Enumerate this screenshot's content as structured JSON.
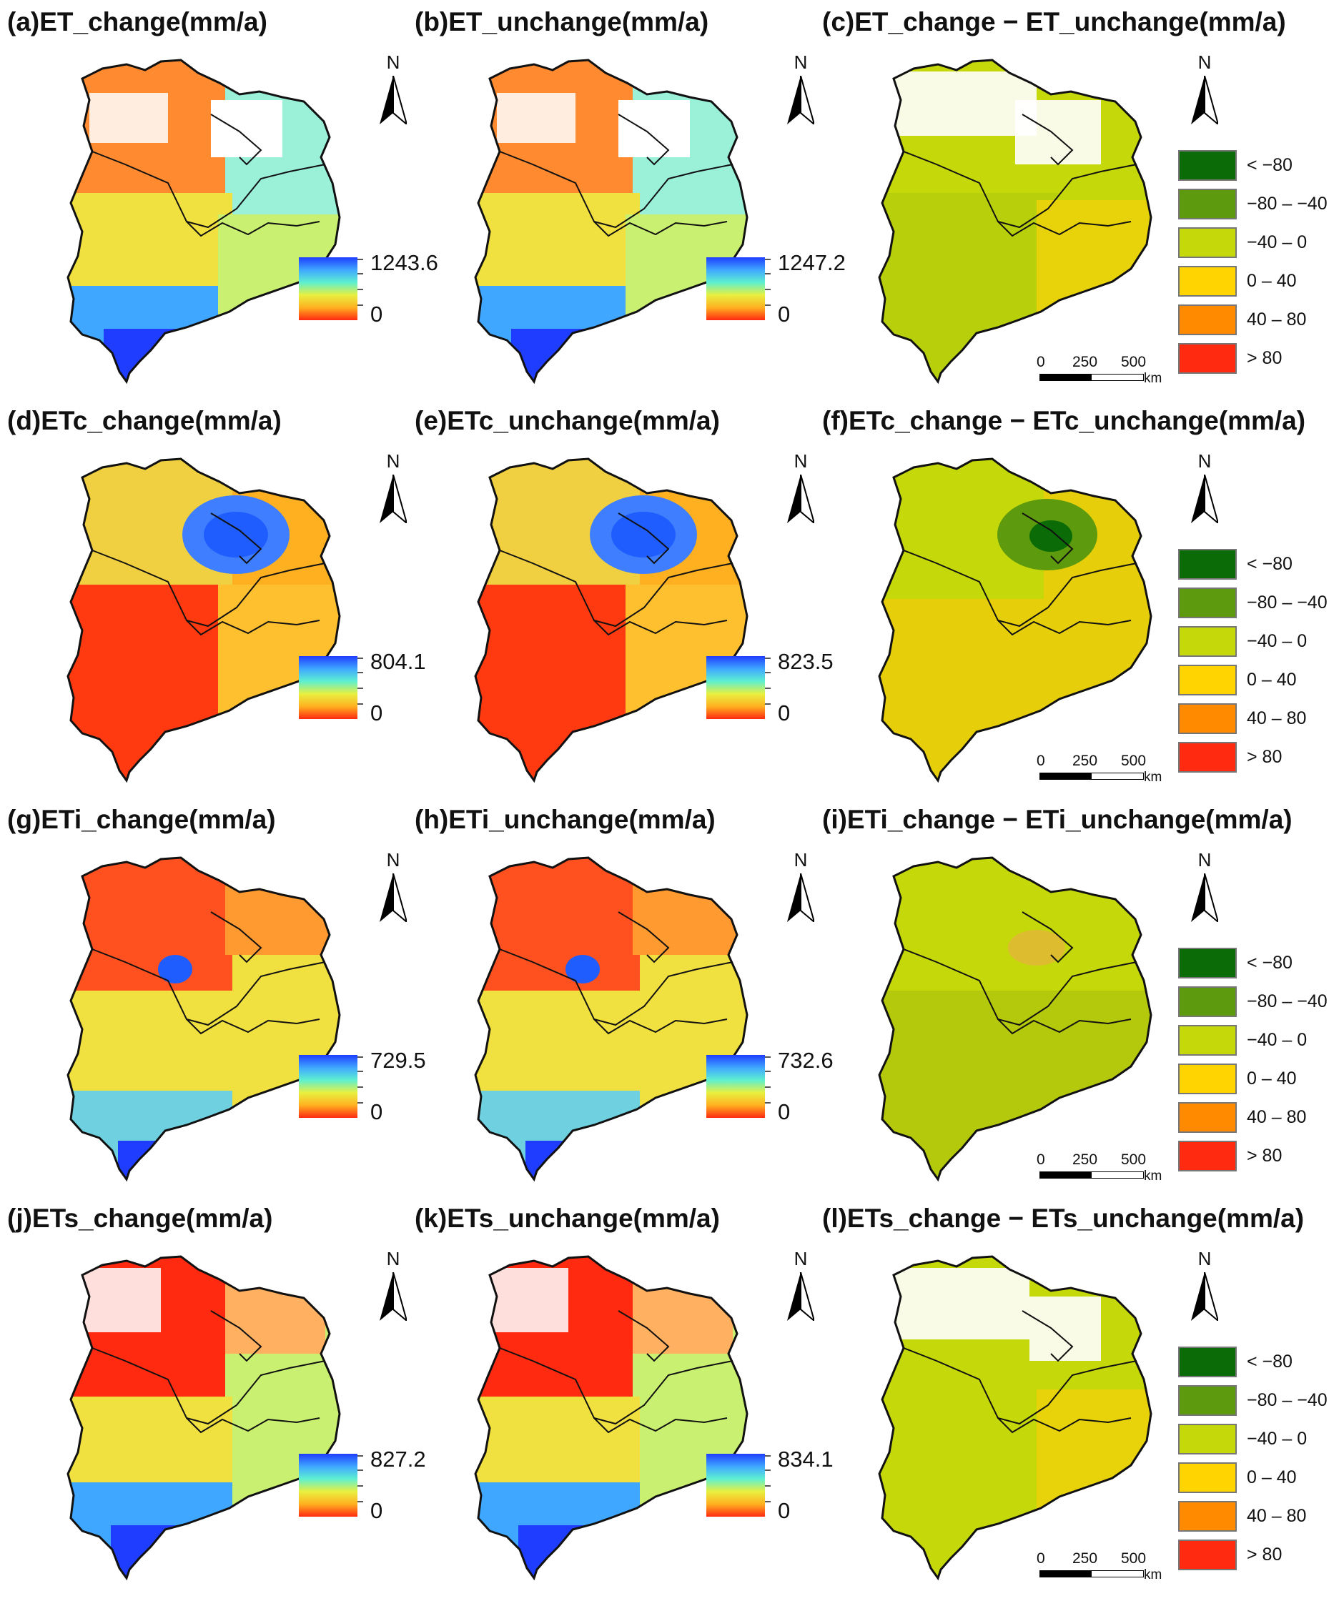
{
  "north_label": "N",
  "colorbar_colors": [
    "#1f3dff",
    "#3fa7ff",
    "#5ef0d0",
    "#e8f040",
    "#ffb020",
    "#ff2a10"
  ],
  "rows": [
    {
      "a": {
        "title": "(a)ET_change(mm/a)",
        "max": "1243.6",
        "min": "0"
      },
      "b": {
        "title": "(b)ET_unchange(mm/a)",
        "max": "1247.2",
        "min": "0"
      },
      "c": {
        "title": "(c)ET_change − ET_unchange(mm/a)"
      }
    },
    {
      "a": {
        "title": "(d)ETc_change(mm/a)",
        "max": "804.1",
        "min": "0"
      },
      "b": {
        "title": "(e)ETc_unchange(mm/a)",
        "max": "823.5",
        "min": "0"
      },
      "c": {
        "title": "(f)ETc_change − ETc_unchange(mm/a)"
      }
    },
    {
      "a": {
        "title": "(g)ETi_change(mm/a)",
        "max": "729.5",
        "min": "0"
      },
      "b": {
        "title": "(h)ETi_unchange(mm/a)",
        "max": "732.6",
        "min": "0"
      },
      "c": {
        "title": "(i)ETi_change − ETi_unchange(mm/a)"
      }
    },
    {
      "a": {
        "title": "(j)ETs_change(mm/a)",
        "max": "827.2",
        "min": "0"
      },
      "b": {
        "title": "(k)ETs_unchange(mm/a)",
        "max": "834.1",
        "min": "0"
      },
      "c": {
        "title": "(l)ETs_change − ETs_unchange(mm/a)"
      }
    }
  ],
  "diff_legend": [
    {
      "label": "< −80",
      "color": "#0b6b06"
    },
    {
      "label": "−80 – −40",
      "color": "#5d9a0e"
    },
    {
      "label": "−40 – 0",
      "color": "#c5d80a"
    },
    {
      "label": "0 – 40",
      "color": "#ffd400"
    },
    {
      "label": "40 – 80",
      "color": "#ff8a00"
    },
    {
      "label": "> 80",
      "color": "#ff2a10"
    }
  ],
  "scale_bar": {
    "labels": [
      "0",
      "250",
      "500"
    ],
    "unit": "km"
  }
}
